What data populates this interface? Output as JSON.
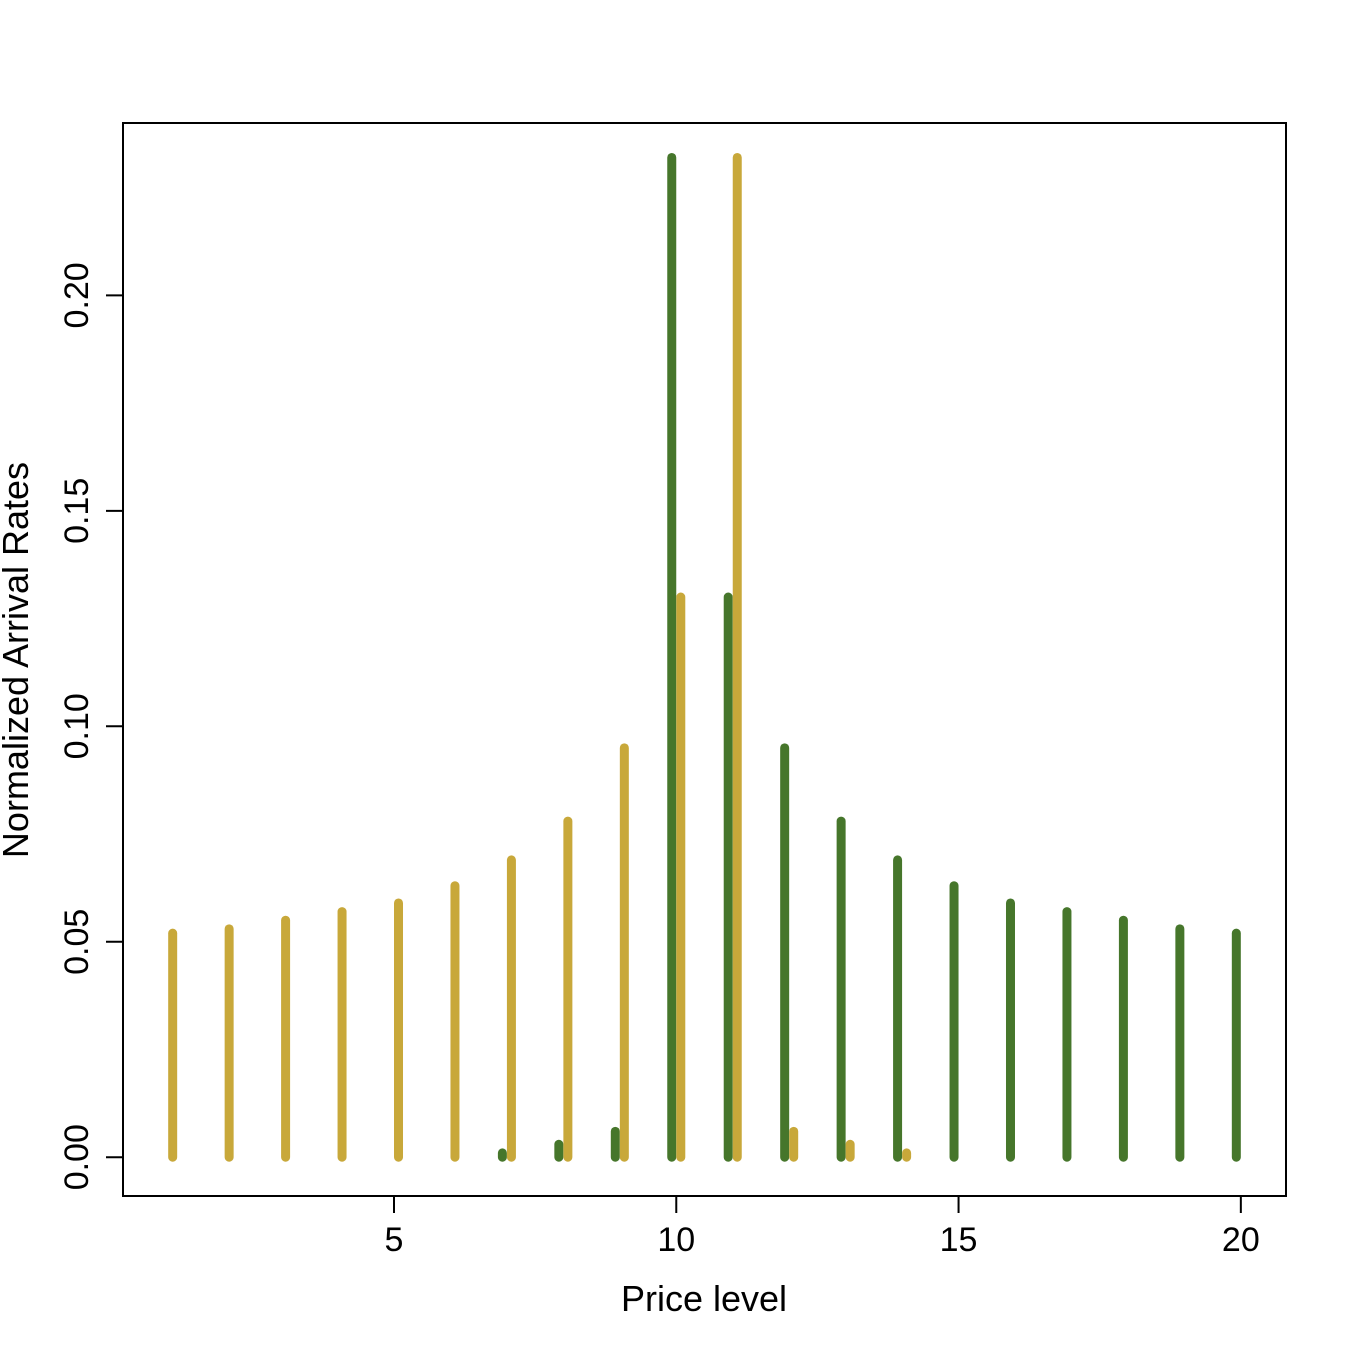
{
  "chart_data": {
    "type": "bar",
    "title": "",
    "xlabel": "Price level",
    "ylabel": "Normalized Arrival Rates",
    "xlim": [
      0.2,
      20.8
    ],
    "ylim": [
      -0.009,
      0.24
    ],
    "xticks": [
      5,
      10,
      15,
      20
    ],
    "yticks": [
      0.0,
      0.05,
      0.1,
      0.15,
      0.2
    ],
    "xtick_labels": [
      "5",
      "10",
      "15",
      "20"
    ],
    "ytick_labels": [
      "0.00",
      "0.05",
      "0.10",
      "0.15",
      "0.20"
    ],
    "grid": false,
    "legend": "none",
    "series": [
      {
        "color": "#46762b",
        "x": [
          7,
          8,
          9,
          10,
          11,
          12,
          13,
          14,
          15,
          16,
          17,
          18,
          19,
          20
        ],
        "values": [
          0.001,
          0.003,
          0.006,
          0.232,
          0.13,
          0.095,
          0.078,
          0.069,
          0.063,
          0.059,
          0.057,
          0.055,
          0.053,
          0.052
        ]
      },
      {
        "color": "#c8a83a",
        "x": [
          1,
          2,
          3,
          4,
          5,
          6,
          7,
          8,
          9,
          10,
          11,
          12,
          13,
          14
        ],
        "values": [
          0.052,
          0.053,
          0.055,
          0.057,
          0.059,
          0.063,
          0.069,
          0.078,
          0.095,
          0.13,
          0.232,
          0.006,
          0.003,
          0.001
        ]
      }
    ]
  }
}
